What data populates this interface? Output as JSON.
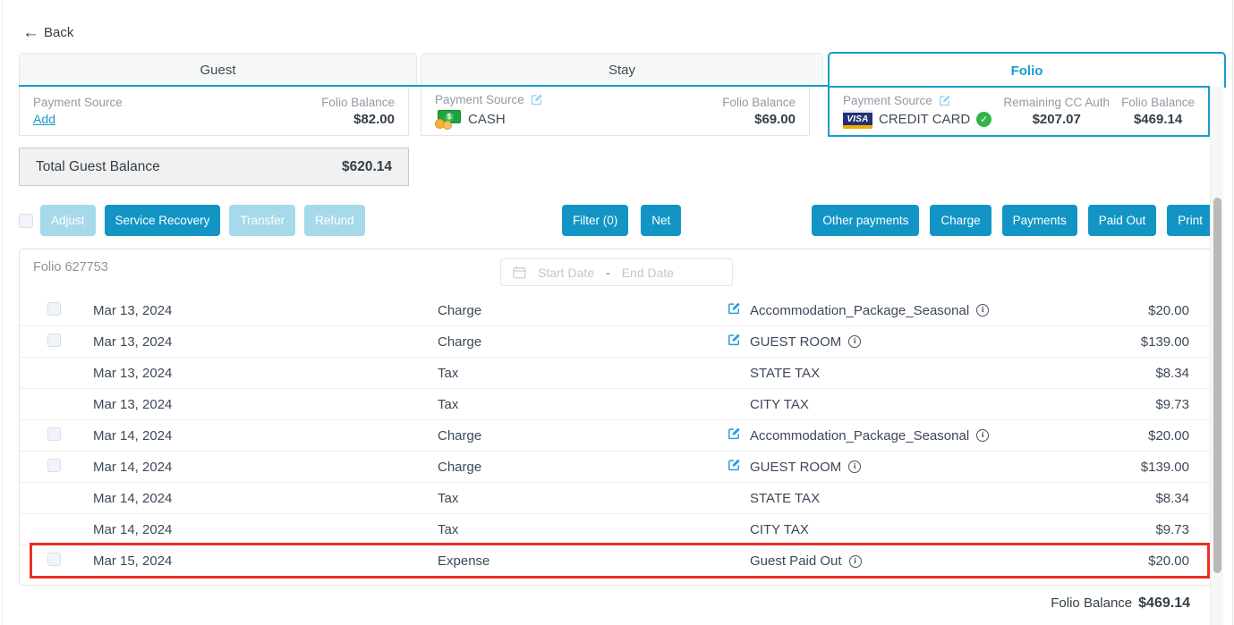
{
  "back_label": "Back",
  "tabs": [
    {
      "label": "Guest",
      "active": false
    },
    {
      "label": "Stay",
      "active": false
    },
    {
      "label": "Folio",
      "active": true
    }
  ],
  "cards": {
    "guest": {
      "payment_source_label": "Payment Source",
      "add_link": "Add",
      "folio_balance_label": "Folio Balance",
      "folio_balance_value": "$82.00"
    },
    "stay": {
      "payment_source_label": "Payment Source",
      "method": "CASH",
      "folio_balance_label": "Folio Balance",
      "folio_balance_value": "$69.00"
    },
    "folio": {
      "payment_source_label": "Payment Source",
      "card_brand": "VISA",
      "method": "CREDIT CARD",
      "remaining_cc_auth_label": "Remaining CC Auth",
      "remaining_cc_auth_value": "$207.07",
      "folio_balance_label": "Folio Balance",
      "folio_balance_value": "$469.14"
    }
  },
  "total_guest_balance": {
    "label": "Total Guest Balance",
    "value": "$620.14"
  },
  "action_buttons": {
    "left": [
      {
        "label": "Adjust",
        "enabled": false
      },
      {
        "label": "Service Recovery",
        "enabled": true
      },
      {
        "label": "Transfer",
        "enabled": false
      },
      {
        "label": "Refund",
        "enabled": false
      }
    ],
    "middle": [
      {
        "label": "Filter (0)",
        "enabled": true
      },
      {
        "label": "Net",
        "enabled": true
      }
    ],
    "right": [
      {
        "label": "Other payments",
        "enabled": true
      },
      {
        "label": "Charge",
        "enabled": true
      },
      {
        "label": "Payments",
        "enabled": true
      },
      {
        "label": "Paid Out",
        "enabled": true
      },
      {
        "label": "Print",
        "enabled": true
      }
    ]
  },
  "folio_panel": {
    "title": "Folio 627753",
    "date_filter": {
      "start_placeholder": "Start Date",
      "separator": "-",
      "end_placeholder": "End Date"
    },
    "rows": [
      {
        "date": "Mar 13, 2024",
        "type": "Charge",
        "description": "Accommodation_Package_Seasonal",
        "amount": "$20.00",
        "checkbox": true,
        "editable": true,
        "info": true,
        "highlighted": false
      },
      {
        "date": "Mar 13, 2024",
        "type": "Charge",
        "description": "GUEST ROOM",
        "amount": "$139.00",
        "checkbox": true,
        "editable": true,
        "info": true,
        "highlighted": false
      },
      {
        "date": "Mar 13, 2024",
        "type": "Tax",
        "description": "STATE TAX",
        "amount": "$8.34",
        "checkbox": false,
        "editable": false,
        "info": false,
        "highlighted": false
      },
      {
        "date": "Mar 13, 2024",
        "type": "Tax",
        "description": "CITY TAX",
        "amount": "$9.73",
        "checkbox": false,
        "editable": false,
        "info": false,
        "highlighted": false
      },
      {
        "date": "Mar 14, 2024",
        "type": "Charge",
        "description": "Accommodation_Package_Seasonal",
        "amount": "$20.00",
        "checkbox": true,
        "editable": true,
        "info": true,
        "highlighted": false
      },
      {
        "date": "Mar 14, 2024",
        "type": "Charge",
        "description": "GUEST ROOM",
        "amount": "$139.00",
        "checkbox": true,
        "editable": true,
        "info": true,
        "highlighted": false
      },
      {
        "date": "Mar 14, 2024",
        "type": "Tax",
        "description": "STATE TAX",
        "amount": "$8.34",
        "checkbox": false,
        "editable": false,
        "info": false,
        "highlighted": false
      },
      {
        "date": "Mar 14, 2024",
        "type": "Tax",
        "description": "CITY TAX",
        "amount": "$9.73",
        "checkbox": false,
        "editable": false,
        "info": false,
        "highlighted": false
      },
      {
        "date": "Mar 15, 2024",
        "type": "Expense",
        "description": "Guest Paid Out",
        "amount": "$20.00",
        "checkbox": true,
        "editable": false,
        "info": true,
        "highlighted": true
      }
    ],
    "footer": {
      "label": "Folio Balance",
      "value": "$469.14"
    }
  },
  "colors": {
    "accent_blue": "#1295c4",
    "disabled_blue": "#a6d9ea",
    "link_blue": "#189ccd",
    "highlight_red": "#ee2e24",
    "success_green": "#35b24a"
  }
}
